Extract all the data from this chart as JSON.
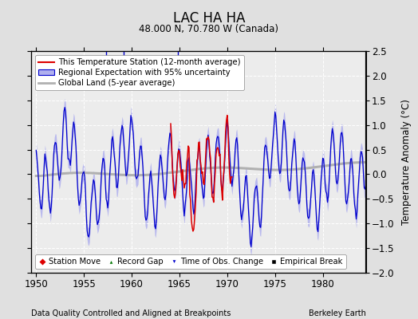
{
  "title": "LAC HA HA",
  "subtitle": "48.000 N, 70.780 W (Canada)",
  "xlabel_left": "Data Quality Controlled and Aligned at Breakpoints",
  "xlabel_right": "Berkeley Earth",
  "ylabel": "Temperature Anomaly (°C)",
  "xlim": [
    1949.5,
    1984.5
  ],
  "ylim": [
    -2.0,
    2.5
  ],
  "yticks": [
    -2,
    -1.5,
    -1,
    -0.5,
    0,
    0.5,
    1,
    1.5,
    2,
    2.5
  ],
  "xticks": [
    1950,
    1955,
    1960,
    1965,
    1970,
    1975,
    1980
  ],
  "bg_color": "#e0e0e0",
  "plot_bg_color": "#ececec",
  "grid_color": "#ffffff",
  "station_color": "#dd0000",
  "regional_color": "#0000cc",
  "uncertainty_color": "#b0b0ee",
  "global_color": "#b0b0b0",
  "legend_items": [
    "This Temperature Station (12-month average)",
    "Regional Expectation with 95% uncertainty",
    "Global Land (5-year average)"
  ],
  "time_of_obs_changes": [
    1957.3,
    1959.2,
    1964.8
  ],
  "station_start": 1964.0,
  "station_end": 1970.5
}
